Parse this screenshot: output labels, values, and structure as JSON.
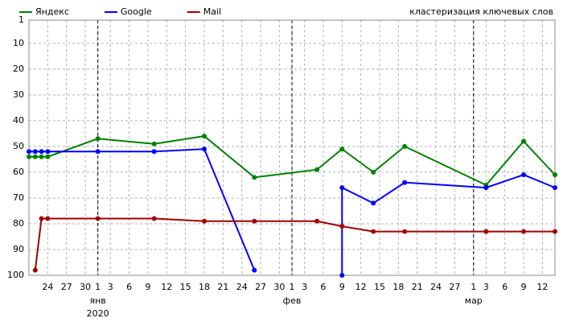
{
  "chart_data": {
    "type": "line",
    "title": "кластеризация ключевых слов",
    "inverted_y": true,
    "grid": true,
    "ylim": [
      1,
      100
    ],
    "yticks": [
      1,
      10,
      20,
      30,
      40,
      50,
      60,
      70,
      80,
      90,
      100
    ],
    "xlim": [
      "2019-12-21",
      "2020-03-14"
    ],
    "xticks": [
      {
        "value": "2019-12-24",
        "label": "24"
      },
      {
        "value": "2019-12-27",
        "label": "27"
      },
      {
        "value": "2019-12-30",
        "label": "30"
      },
      {
        "value": "2020-01-01",
        "label": "1"
      },
      {
        "value": "2020-01-03",
        "label": "3"
      },
      {
        "value": "2020-01-06",
        "label": "6"
      },
      {
        "value": "2020-01-09",
        "label": "9"
      },
      {
        "value": "2020-01-12",
        "label": "12"
      },
      {
        "value": "2020-01-15",
        "label": "15"
      },
      {
        "value": "2020-01-18",
        "label": "18"
      },
      {
        "value": "2020-01-21",
        "label": "21"
      },
      {
        "value": "2020-01-24",
        "label": "24"
      },
      {
        "value": "2020-01-27",
        "label": "27"
      },
      {
        "value": "2020-01-30",
        "label": "30"
      },
      {
        "value": "2020-02-01",
        "label": "1"
      },
      {
        "value": "2020-02-03",
        "label": "3"
      },
      {
        "value": "2020-02-06",
        "label": "6"
      },
      {
        "value": "2020-02-09",
        "label": "9"
      },
      {
        "value": "2020-02-12",
        "label": "12"
      },
      {
        "value": "2020-02-15",
        "label": "15"
      },
      {
        "value": "2020-02-18",
        "label": "18"
      },
      {
        "value": "2020-02-21",
        "label": "21"
      },
      {
        "value": "2020-02-24",
        "label": "24"
      },
      {
        "value": "2020-02-27",
        "label": "27"
      },
      {
        "value": "2020-03-01",
        "label": "1"
      },
      {
        "value": "2020-03-03",
        "label": "3"
      },
      {
        "value": "2020-03-06",
        "label": "6"
      },
      {
        "value": "2020-03-09",
        "label": "9"
      },
      {
        "value": "2020-03-12",
        "label": "12"
      }
    ],
    "month_ticks": [
      {
        "value": "2020-01-01",
        "label": "янв"
      },
      {
        "value": "2020-02-01",
        "label": "фев"
      },
      {
        "value": "2020-03-01",
        "label": "мар"
      }
    ],
    "year_labels": [
      {
        "value": "2020-01-01",
        "label": "2020"
      }
    ],
    "series": [
      {
        "name": "Яндекс",
        "color": "#008000",
        "x": [
          "2019-12-21",
          "2019-12-22",
          "2019-12-23",
          "2019-12-24",
          "2020-01-01",
          "2020-01-10",
          "2020-01-18",
          "2020-01-26",
          "2020-02-05",
          "2020-02-09",
          "2020-02-14",
          "2020-02-19",
          "2020-03-03",
          "2020-03-09",
          "2020-03-14"
        ],
        "values": [
          54,
          54,
          54,
          54,
          47,
          49,
          46,
          62,
          59,
          51,
          60,
          50,
          65,
          48,
          61
        ]
      },
      {
        "name": "Google",
        "color": "#0000ff",
        "x": [
          "2019-12-21",
          "2019-12-22",
          "2019-12-23",
          "2019-12-24",
          "2020-01-01",
          "2020-01-10",
          "2020-01-18",
          "2020-01-26",
          null,
          "2020-02-09",
          "2020-02-09",
          "2020-02-14",
          "2020-02-19",
          "2020-03-03",
          "2020-03-09",
          "2020-03-14"
        ],
        "values": [
          52,
          52,
          52,
          52,
          52,
          52,
          51,
          98,
          null,
          100,
          66,
          72,
          64,
          66,
          61,
          66
        ]
      },
      {
        "name": "Mail",
        "color": "#a00000",
        "x": [
          "2019-12-22",
          "2019-12-23",
          "2019-12-24",
          "2020-01-01",
          "2020-01-10",
          "2020-01-18",
          "2020-01-26",
          "2020-02-05",
          "2020-02-09",
          "2020-02-14",
          "2020-02-19",
          "2020-03-03",
          "2020-03-09",
          "2020-03-14"
        ],
        "values": [
          98,
          78,
          78,
          78,
          78,
          79,
          79,
          79,
          81,
          83,
          83,
          83,
          83,
          83
        ]
      }
    ]
  }
}
